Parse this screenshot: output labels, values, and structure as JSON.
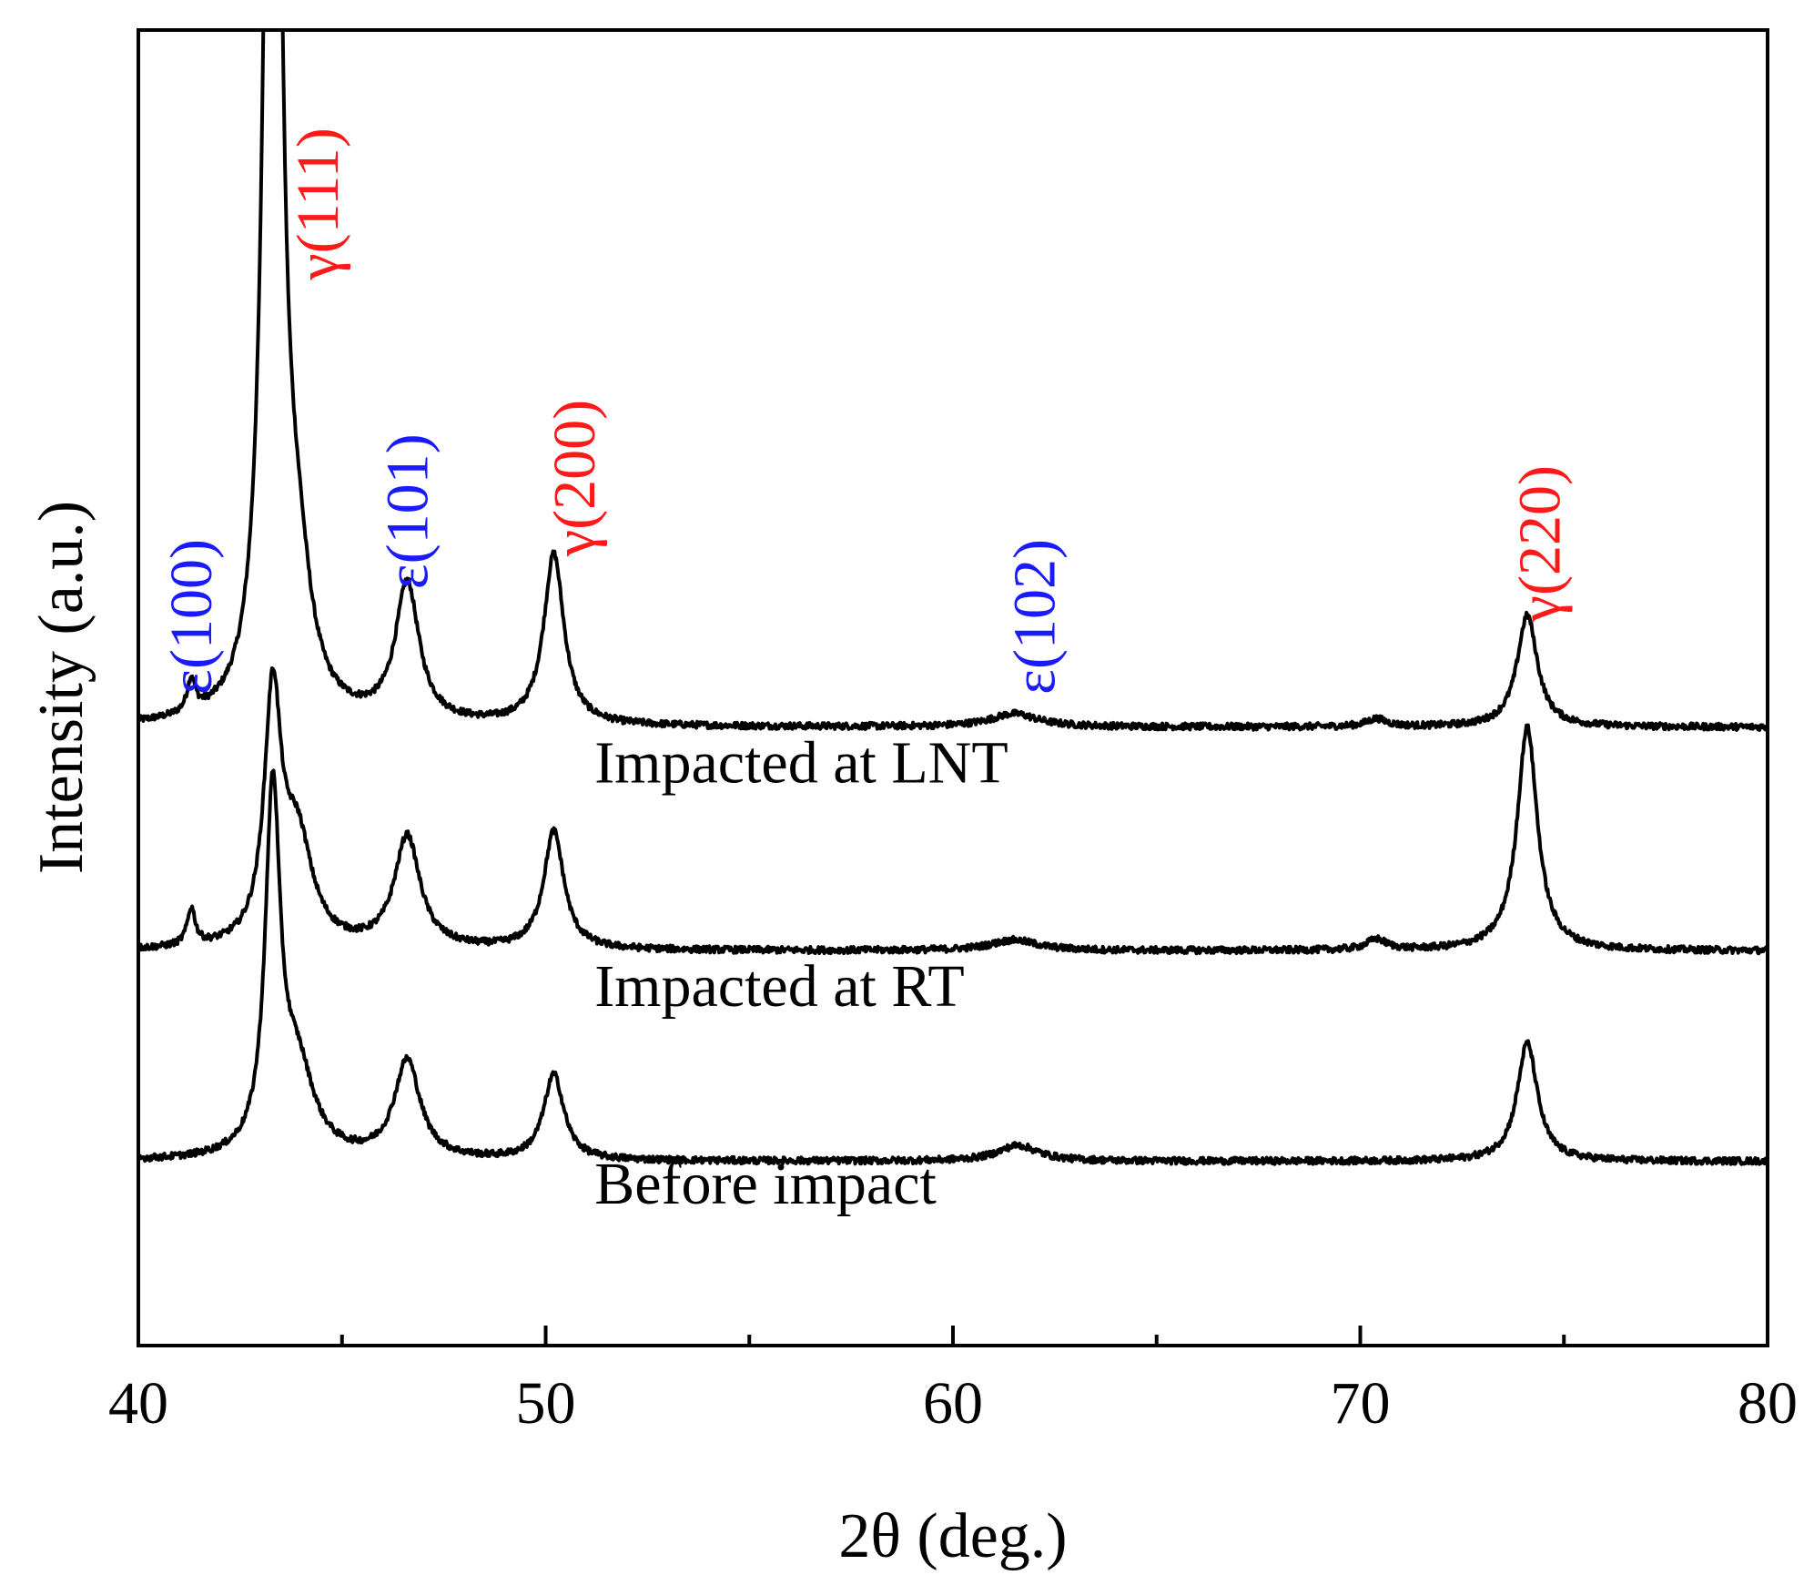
{
  "chart_data": {
    "type": "line",
    "xlabel": "2θ (deg.)",
    "ylabel": "Intensity (a.u.)",
    "xlim": [
      40,
      80
    ],
    "ylim": [
      0,
      100
    ],
    "xticks": [
      40,
      50,
      60,
      70,
      80
    ],
    "xticks_minor": [
      45,
      55,
      65,
      75
    ],
    "grid": false,
    "legend": "none",
    "series": [
      {
        "name": "Impacted at LNT",
        "color": "#000000",
        "offset": 47,
        "baseline": 0.5,
        "peaks": [
          {
            "x": 41.3,
            "h": 2.5,
            "w": 0.12
          },
          {
            "x": 43.3,
            "h": 120,
            "w": 0.2
          },
          {
            "x": 43.9,
            "h": 9,
            "w": 0.4
          },
          {
            "x": 46.6,
            "h": 10.5,
            "w": 0.35
          },
          {
            "x": 50.2,
            "h": 13,
            "w": 0.3
          },
          {
            "x": 61.5,
            "h": 1,
            "w": 0.7
          },
          {
            "x": 70.4,
            "h": 0.6,
            "w": 0.3
          },
          {
            "x": 74.1,
            "h": 8.5,
            "w": 0.3
          }
        ]
      },
      {
        "name": "Impacted at RT",
        "color": "#000000",
        "offset": 30,
        "baseline": 0.5,
        "peaks": [
          {
            "x": 41.3,
            "h": 2.8,
            "w": 0.12
          },
          {
            "x": 43.3,
            "h": 18.5,
            "w": 0.25
          },
          {
            "x": 43.9,
            "h": 8,
            "w": 0.45
          },
          {
            "x": 46.6,
            "h": 8.5,
            "w": 0.38
          },
          {
            "x": 50.2,
            "h": 9,
            "w": 0.3
          },
          {
            "x": 61.5,
            "h": 0.8,
            "w": 0.7
          },
          {
            "x": 70.4,
            "h": 0.8,
            "w": 0.3
          },
          {
            "x": 74.1,
            "h": 17,
            "w": 0.3
          }
        ]
      },
      {
        "name": "Before impact",
        "color": "#000000",
        "offset": 14,
        "baseline": 0.5,
        "peaks": [
          {
            "x": 43.3,
            "h": 27,
            "w": 0.22
          },
          {
            "x": 43.9,
            "h": 6.5,
            "w": 0.5
          },
          {
            "x": 46.6,
            "h": 7.5,
            "w": 0.38
          },
          {
            "x": 50.2,
            "h": 6.5,
            "w": 0.3
          },
          {
            "x": 61.6,
            "h": 1.2,
            "w": 0.6
          },
          {
            "x": 74.1,
            "h": 9,
            "w": 0.3
          }
        ]
      }
    ],
    "series_labels": [
      {
        "text": "Impacted at LNT",
        "x": 51.2,
        "y": 42.8
      },
      {
        "text": "Impacted at RT",
        "x": 51.2,
        "y": 25.8
      },
      {
        "text": "Before impact",
        "x": 51.2,
        "y": 10.8
      }
    ],
    "peak_labels": [
      {
        "text": "ε(100)",
        "x": 41.3,
        "y": 49.5,
        "color": "#1a1aff"
      },
      {
        "text": "γ(111)",
        "x": 44.4,
        "y": 81.0,
        "color": "#ff1a1a"
      },
      {
        "text": "ε(101)",
        "x": 46.6,
        "y": 57.5,
        "color": "#1a1aff"
      },
      {
        "text": "γ(200)",
        "x": 50.7,
        "y": 60.0,
        "color": "#ff1a1a"
      },
      {
        "text": "ε(102)",
        "x": 62.0,
        "y": 49.5,
        "color": "#1a1aff"
      },
      {
        "text": "γ(220)",
        "x": 74.4,
        "y": 55.0,
        "color": "#ff1a1a"
      }
    ]
  }
}
